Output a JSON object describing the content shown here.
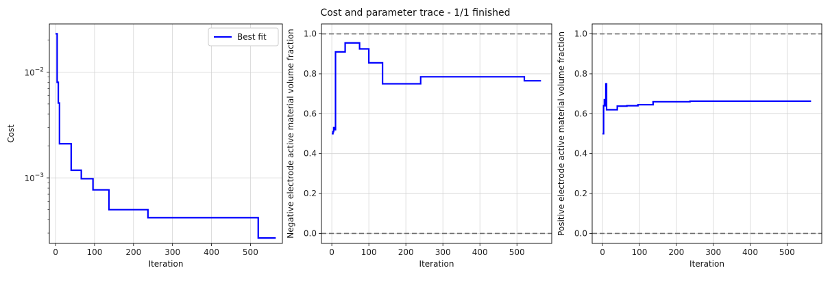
{
  "figure": {
    "suptitle": "Cost and parameter trace - 1/1 finished"
  },
  "chart_data": [
    {
      "type": "line",
      "step": true,
      "title": "",
      "xlabel": "Iteration",
      "ylabel": "Cost",
      "yscale": "log",
      "xlim": [
        -16,
        582
      ],
      "ylim": [
        0.00024,
        0.0285
      ],
      "xticks": [
        0,
        100,
        200,
        300,
        400,
        500
      ],
      "yticks": [
        0.001,
        0.01
      ],
      "ytick_labels": [
        {
          "base": "10",
          "exp": "−3"
        },
        {
          "base": "10",
          "exp": "−2"
        }
      ],
      "grid": true,
      "legend": "top-right",
      "series": [
        {
          "name": "Best fit",
          "color": "#0000ff",
          "x": [
            0,
            4,
            7,
            10,
            14,
            40,
            66,
            96,
            137,
            237,
            520,
            565
          ],
          "y": [
            0.023,
            0.008,
            0.0051,
            0.0021,
            0.0021,
            0.00118,
            0.00098,
            0.00077,
            0.0005,
            0.00042,
            0.00027,
            0.00027
          ]
        }
      ],
      "hlines": []
    },
    {
      "type": "line",
      "step": true,
      "title": "",
      "xlabel": "Iteration",
      "ylabel": "Negative electrode active material volume fraction",
      "yscale": "linear",
      "xlim": [
        -28,
        594
      ],
      "ylim": [
        -0.05,
        1.05
      ],
      "xticks": [
        0,
        100,
        200,
        300,
        400,
        500
      ],
      "yticks": [
        0.0,
        0.2,
        0.4,
        0.6,
        0.8,
        1.0
      ],
      "ytick_labels": [
        "0.0",
        "0.2",
        "0.4",
        "0.6",
        "0.8",
        "1.0"
      ],
      "grid": true,
      "legend": "none",
      "series": [
        {
          "color": "#0000ff",
          "x": [
            0,
            3,
            5,
            7,
            10,
            12,
            36,
            55,
            75,
            100,
            137,
            160,
            240,
            520,
            565
          ],
          "y": [
            0.5,
            0.51,
            0.53,
            0.52,
            0.91,
            0.91,
            0.955,
            0.955,
            0.925,
            0.855,
            0.75,
            0.75,
            0.785,
            0.765,
            0.765
          ]
        }
      ],
      "hlines": [
        0.0,
        1.0
      ]
    },
    {
      "type": "line",
      "step": true,
      "title": "",
      "xlabel": "Iteration",
      "ylabel": "Positive electrode active material volume fraction",
      "yscale": "linear",
      "xlim": [
        -28,
        594
      ],
      "ylim": [
        -0.05,
        1.05
      ],
      "xticks": [
        0,
        100,
        200,
        300,
        400,
        500
      ],
      "yticks": [
        0.0,
        0.2,
        0.4,
        0.6,
        0.8,
        1.0
      ],
      "ytick_labels": [
        "0.0",
        "0.2",
        "0.4",
        "0.6",
        "0.8",
        "1.0"
      ],
      "grid": true,
      "legend": "none",
      "series": [
        {
          "color": "#0000ff",
          "x": [
            0,
            3,
            5,
            7,
            9,
            11,
            13,
            40,
            66,
            96,
            137,
            237,
            565
          ],
          "y": [
            0.5,
            0.64,
            0.67,
            0.64,
            0.75,
            0.62,
            0.62,
            0.638,
            0.64,
            0.645,
            0.66,
            0.663,
            0.663
          ]
        }
      ],
      "hlines": [
        0.0,
        1.0
      ]
    }
  ]
}
